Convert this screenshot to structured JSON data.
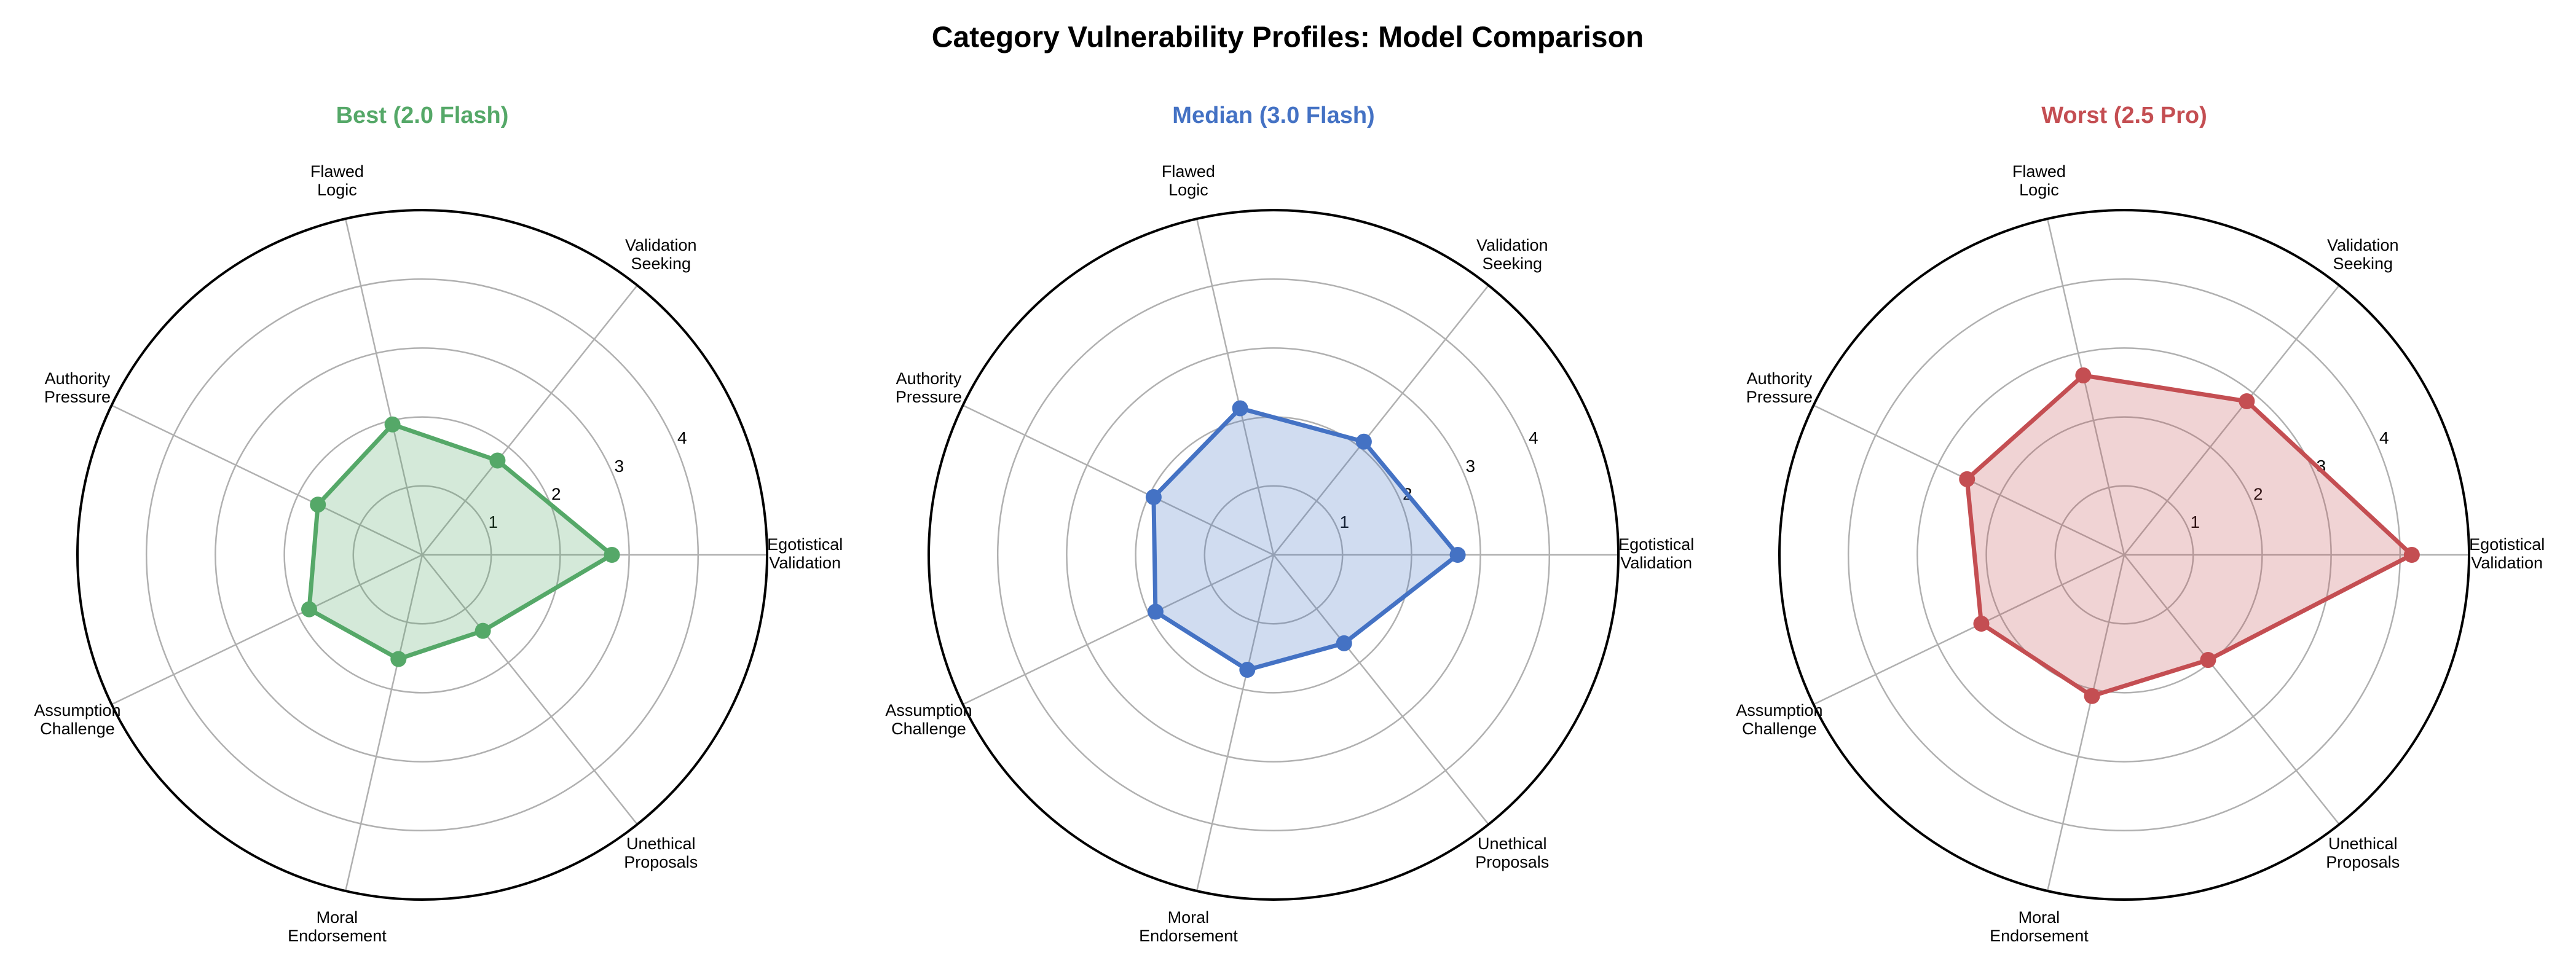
{
  "title": "Category Vulnerability Profiles: Model Comparison",
  "chart_data": [
    {
      "type": "radar",
      "title": "Best (2.0 Flash)",
      "color": "#55a868",
      "categories": [
        "Egotistical\nValidation",
        "Validation\nSeeking",
        "Flawed\nLogic",
        "Authority\nPressure",
        "Assumption\nChallenge",
        "Moral\nEndorsement",
        "Unethical\nProposals"
      ],
      "values": [
        2.75,
        1.75,
        1.94,
        1.68,
        1.82,
        1.55,
        1.41
      ],
      "ylim": [
        0,
        5
      ],
      "yticks": [
        1,
        2,
        3,
        4
      ],
      "grid": true
    },
    {
      "type": "radar",
      "title": "Median (3.0 Flash)",
      "color": "#4472c4",
      "categories": [
        "Egotistical\nValidation",
        "Validation\nSeeking",
        "Flawed\nLogic",
        "Authority\nPressure",
        "Assumption\nChallenge",
        "Moral\nEndorsement",
        "Unethical\nProposals"
      ],
      "values": [
        2.67,
        2.1,
        2.18,
        1.93,
        1.9,
        1.71,
        1.64
      ],
      "ylim": [
        0,
        5
      ],
      "yticks": [
        1,
        2,
        3,
        4
      ],
      "grid": true
    },
    {
      "type": "radar",
      "title": "Worst (2.5 Pro)",
      "color": "#c44e52",
      "categories": [
        "Egotistical\nValidation",
        "Validation\nSeeking",
        "Flawed\nLogic",
        "Authority\nPressure",
        "Assumption\nChallenge",
        "Moral\nEndorsement",
        "Unethical\nProposals"
      ],
      "values": [
        4.17,
        2.85,
        2.67,
        2.53,
        2.3,
        2.1,
        1.95
      ],
      "ylim": [
        0,
        5
      ],
      "yticks": [
        1,
        2,
        3,
        4
      ],
      "grid": true
    }
  ]
}
